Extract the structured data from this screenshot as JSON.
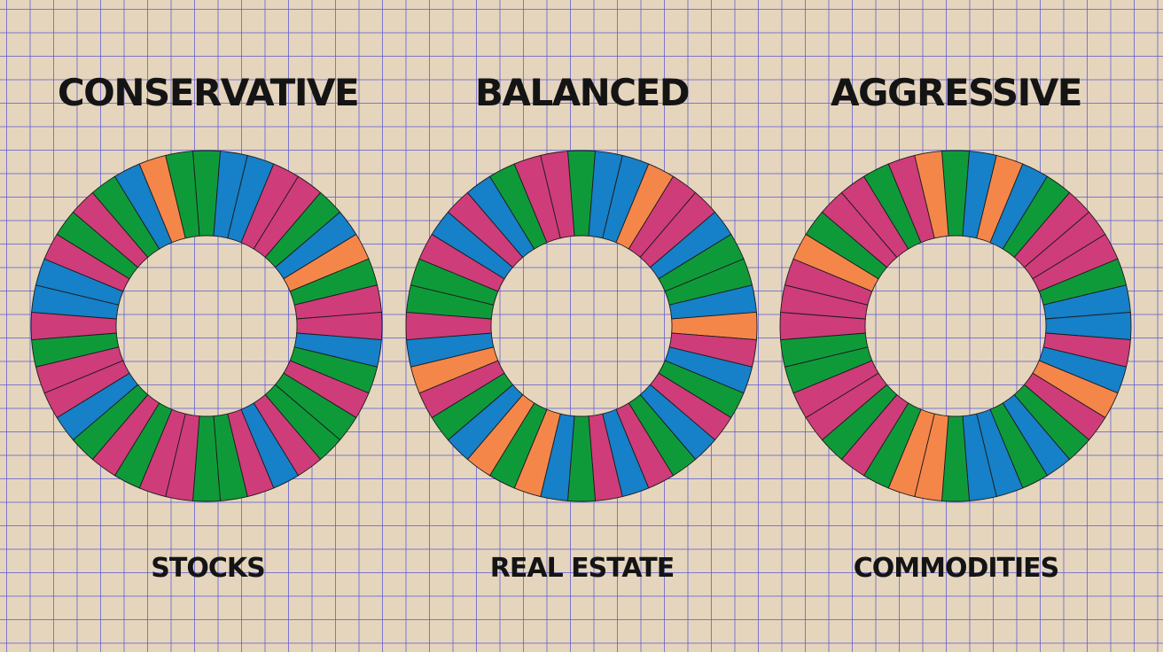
{
  "colors": {
    "green": "#0f9a3a",
    "blue": "#1680c8",
    "pink": "#cf3c7a",
    "orange": "#f5864a",
    "background": "#e5d5bd",
    "grid": "#605cd2"
  },
  "chart_data": [
    {
      "type": "pie",
      "title": "CONSERVATIVE",
      "label": "STOCKS",
      "segments": [
        "green",
        "blue",
        "blue",
        "pink",
        "pink",
        "green",
        "blue",
        "orange",
        "green",
        "pink",
        "pink",
        "blue",
        "green",
        "pink",
        "green",
        "green",
        "pink",
        "blue",
        "pink",
        "green",
        "green",
        "pink",
        "pink",
        "green",
        "pink",
        "green",
        "blue",
        "pink",
        "pink",
        "green",
        "pink",
        "blue",
        "blue",
        "pink",
        "green",
        "pink",
        "green",
        "blue",
        "orange",
        "green"
      ]
    },
    {
      "type": "pie",
      "title": "BALANCED",
      "label": "REAL ESTATE",
      "segments": [
        "green",
        "blue",
        "blue",
        "orange",
        "pink",
        "pink",
        "blue",
        "green",
        "green",
        "blue",
        "orange",
        "pink",
        "blue",
        "green",
        "pink",
        "blue",
        "green",
        "pink",
        "blue",
        "pink",
        "green",
        "blue",
        "orange",
        "green",
        "orange",
        "blue",
        "green",
        "pink",
        "orange",
        "blue",
        "pink",
        "green",
        "green",
        "pink",
        "blue",
        "pink",
        "blue",
        "green",
        "pink",
        "pink"
      ]
    },
    {
      "type": "pie",
      "title": "AGGRESSIVE",
      "label": "COMMODITIES",
      "segments": [
        "green",
        "blue",
        "orange",
        "blue",
        "green",
        "pink",
        "pink",
        "pink",
        "green",
        "blue",
        "blue",
        "pink",
        "blue",
        "orange",
        "pink",
        "green",
        "blue",
        "green",
        "blue",
        "blue",
        "green",
        "orange",
        "orange",
        "green",
        "pink",
        "green",
        "pink",
        "pink",
        "green",
        "green",
        "pink",
        "pink",
        "pink",
        "orange",
        "green",
        "pink",
        "pink",
        "green",
        "pink",
        "orange"
      ]
    }
  ]
}
